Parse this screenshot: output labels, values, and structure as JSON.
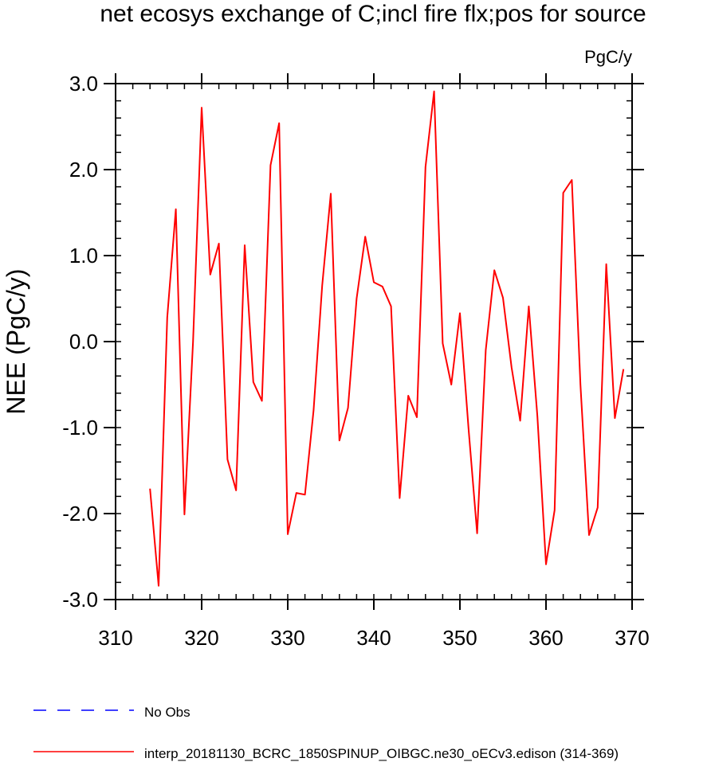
{
  "chart_data": {
    "type": "line",
    "title": "net ecosys exchange of C;incl fire flx;pos for source",
    "units_label": "PgC/y",
    "ylabel": "NEE  (PgC/y)",
    "xlabel": "",
    "xlim": [
      310,
      370
    ],
    "ylim": [
      -3.0,
      3.0
    ],
    "x_ticks": [
      310,
      320,
      330,
      340,
      350,
      360,
      370
    ],
    "x_minor_step": 2,
    "y_ticks": [
      "3.0",
      "2.0",
      "1.0",
      "0.0",
      "-1.0",
      "-2.0",
      "-3.0"
    ],
    "y_minor_step": 0.2,
    "grid": false,
    "legend_position": "bottom-left",
    "legend": [
      {
        "label": "No Obs",
        "color": "#0000ff",
        "dash": "dashed"
      },
      {
        "label": "interp_20181130_BCRC_1850SPINUP_OIBGC.ne30_oECv3.edison (314-369)",
        "color": "#ff0000",
        "dash": "solid"
      }
    ],
    "series": [
      {
        "name": "interp_20181130_BCRC_1850SPINUP_OIBGC.ne30_oECv3.edison (314-369)",
        "color": "#ff0000",
        "x": [
          314,
          315,
          316,
          317,
          318,
          319,
          320,
          321,
          322,
          323,
          324,
          325,
          326,
          327,
          328,
          329,
          330,
          331,
          332,
          333,
          334,
          335,
          336,
          337,
          338,
          339,
          340,
          341,
          342,
          343,
          344,
          345,
          346,
          347,
          348,
          349,
          350,
          351,
          352,
          353,
          354,
          355,
          356,
          357,
          358,
          359,
          360,
          361,
          362,
          363,
          364,
          365,
          366,
          367,
          368,
          369
        ],
        "values": [
          -1.71,
          -2.84,
          0.28,
          1.54,
          -2.01,
          0.0,
          2.72,
          0.78,
          1.14,
          -1.37,
          -1.73,
          1.12,
          -0.47,
          -0.69,
          2.05,
          2.54,
          -2.24,
          -1.76,
          -1.78,
          -0.8,
          0.65,
          1.72,
          -1.15,
          -0.77,
          0.5,
          1.22,
          0.69,
          0.64,
          0.41,
          -1.82,
          -0.63,
          -0.88,
          2.03,
          2.91,
          -0.02,
          -0.5,
          0.33,
          -1.01,
          -2.23,
          -0.1,
          0.83,
          0.51,
          -0.3,
          -0.92,
          0.41,
          -0.87,
          -2.59,
          -1.96,
          1.73,
          1.88,
          -0.5,
          -2.25,
          -1.93,
          0.9,
          -0.89,
          -0.32
        ]
      }
    ]
  }
}
